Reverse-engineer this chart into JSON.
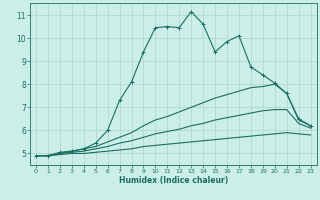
{
  "xlabel": "Humidex (Indice chaleur)",
  "background_color": "#cceee8",
  "grid_color": "#aad4cc",
  "line_color": "#1a6e60",
  "xlim": [
    -0.5,
    23.5
  ],
  "ylim": [
    4.5,
    11.5
  ],
  "xticks": [
    0,
    1,
    2,
    3,
    4,
    5,
    6,
    7,
    8,
    9,
    10,
    11,
    12,
    13,
    14,
    15,
    16,
    17,
    18,
    19,
    20,
    21,
    22,
    23
  ],
  "yticks": [
    5,
    6,
    7,
    8,
    9,
    10,
    11
  ],
  "line1_x": [
    0,
    1,
    2,
    3,
    4,
    5,
    6,
    7,
    8,
    9,
    10,
    11,
    12,
    13,
    14,
    15,
    16,
    17,
    18,
    19,
    20,
    21,
    22,
    23
  ],
  "line1_y": [
    4.9,
    4.9,
    5.05,
    5.1,
    5.2,
    5.45,
    6.0,
    7.3,
    8.1,
    9.4,
    10.45,
    10.5,
    10.45,
    11.15,
    10.6,
    9.4,
    9.85,
    10.1,
    8.75,
    8.4,
    8.05,
    7.6,
    6.5,
    6.2
  ],
  "line2_x": [
    0,
    1,
    2,
    3,
    4,
    5,
    6,
    7,
    8,
    9,
    10,
    11,
    12,
    13,
    14,
    15,
    16,
    17,
    18,
    19,
    20,
    21,
    22,
    23
  ],
  "line2_y": [
    4.9,
    4.9,
    5.0,
    5.1,
    5.2,
    5.3,
    5.5,
    5.7,
    5.9,
    6.2,
    6.45,
    6.6,
    6.8,
    7.0,
    7.2,
    7.4,
    7.55,
    7.7,
    7.85,
    7.9,
    8.0,
    7.6,
    6.45,
    6.2
  ],
  "line3_x": [
    0,
    1,
    2,
    3,
    4,
    5,
    6,
    7,
    8,
    9,
    10,
    11,
    12,
    13,
    14,
    15,
    16,
    17,
    18,
    19,
    20,
    21,
    22,
    23
  ],
  "line3_y": [
    4.9,
    4.9,
    5.0,
    5.05,
    5.1,
    5.2,
    5.3,
    5.45,
    5.55,
    5.7,
    5.85,
    5.95,
    6.05,
    6.2,
    6.3,
    6.45,
    6.55,
    6.65,
    6.75,
    6.85,
    6.9,
    6.9,
    6.3,
    6.1
  ],
  "line4_x": [
    0,
    1,
    2,
    3,
    4,
    5,
    6,
    7,
    8,
    9,
    10,
    11,
    12,
    13,
    14,
    15,
    16,
    17,
    18,
    19,
    20,
    21,
    22,
    23
  ],
  "line4_y": [
    4.9,
    4.9,
    4.95,
    5.0,
    5.0,
    5.05,
    5.1,
    5.15,
    5.2,
    5.3,
    5.35,
    5.4,
    5.45,
    5.5,
    5.55,
    5.6,
    5.65,
    5.7,
    5.75,
    5.8,
    5.85,
    5.9,
    5.85,
    5.8
  ]
}
